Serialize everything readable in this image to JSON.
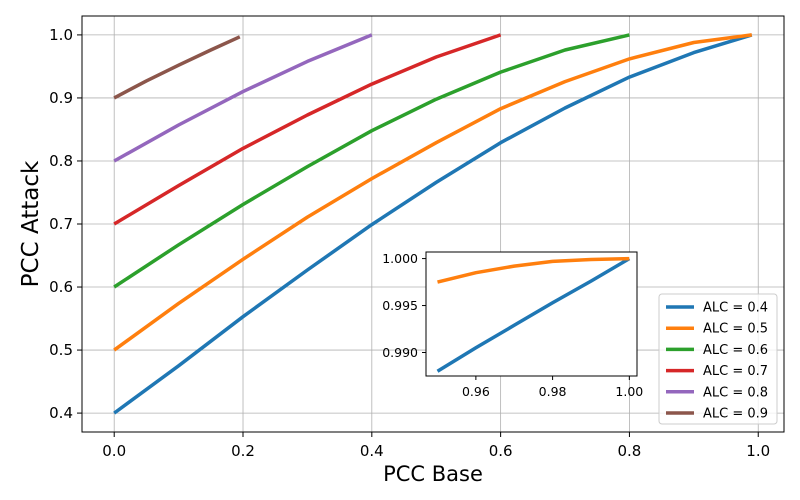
{
  "chart_data": [
    {
      "type": "line",
      "xlabel": "PCC Base",
      "ylabel": "PCC Attack",
      "xlim": [
        -0.05,
        1.04
      ],
      "ylim": [
        0.37,
        1.03
      ],
      "xticks": [
        0.0,
        0.2,
        0.4,
        0.6,
        0.8,
        1.0
      ],
      "xtick_labels": [
        "0.0",
        "0.2",
        "0.4",
        "0.6",
        "0.8",
        "1.0"
      ],
      "yticks": [
        0.4,
        0.5,
        0.6,
        0.7,
        0.8,
        0.9,
        1.0
      ],
      "ytick_labels": [
        "0.4",
        "0.5",
        "0.6",
        "0.7",
        "0.8",
        "0.9",
        "1.0"
      ],
      "grid": true,
      "legend_position": "lower right",
      "series": [
        {
          "name": "ALC = 0.4",
          "color": "#1f77b4",
          "x": [
            0.0,
            0.1,
            0.2,
            0.3,
            0.4,
            0.5,
            0.6,
            0.7,
            0.8,
            0.9,
            0.99
          ],
          "y": [
            0.4,
            0.475,
            0.553,
            0.627,
            0.699,
            0.766,
            0.829,
            0.884,
            0.933,
            0.972,
            1.0
          ]
        },
        {
          "name": "ALC = 0.5",
          "color": "#ff7f0e",
          "x": [
            0.0,
            0.1,
            0.2,
            0.3,
            0.4,
            0.5,
            0.6,
            0.7,
            0.8,
            0.9,
            0.99
          ],
          "y": [
            0.5,
            0.574,
            0.644,
            0.711,
            0.772,
            0.829,
            0.883,
            0.926,
            0.962,
            0.988,
            1.0
          ]
        },
        {
          "name": "ALC = 0.6",
          "color": "#2ca02c",
          "x": [
            0.0,
            0.1,
            0.2,
            0.3,
            0.4,
            0.5,
            0.6,
            0.7,
            0.8
          ],
          "y": [
            0.6,
            0.667,
            0.731,
            0.791,
            0.848,
            0.898,
            0.941,
            0.976,
            1.0
          ]
        },
        {
          "name": "ALC = 0.7",
          "color": "#d62728",
          "x": [
            0.0,
            0.1,
            0.2,
            0.3,
            0.4,
            0.5,
            0.6
          ],
          "y": [
            0.7,
            0.761,
            0.82,
            0.873,
            0.922,
            0.965,
            1.0
          ]
        },
        {
          "name": "ALC = 0.8",
          "color": "#9467bd",
          "x": [
            0.0,
            0.1,
            0.2,
            0.3,
            0.4
          ],
          "y": [
            0.8,
            0.857,
            0.91,
            0.958,
            1.0
          ]
        },
        {
          "name": "ALC = 0.9",
          "color": "#8c564b",
          "x": [
            0.0,
            0.05,
            0.1,
            0.15,
            0.195
          ],
          "y": [
            0.9,
            0.927,
            0.952,
            0.976,
            0.997
          ]
        }
      ]
    },
    {
      "type": "line",
      "xlabel": "",
      "ylabel": "",
      "xlim": [
        0.947,
        1.002
      ],
      "ylim": [
        0.9875,
        1.0007
      ],
      "xticks": [
        0.96,
        0.98,
        1.0
      ],
      "xtick_labels": [
        "0.96",
        "0.98",
        "1.00"
      ],
      "yticks": [
        0.99,
        0.995,
        1.0
      ],
      "ytick_labels": [
        "0.990",
        "0.995",
        "1.000"
      ],
      "grid": false,
      "series": [
        {
          "color": "#1f77b4",
          "x": [
            0.95,
            0.96,
            0.97,
            0.98,
            0.99,
            1.0
          ],
          "y": [
            0.988,
            0.9905,
            0.9929,
            0.9953,
            0.9976,
            1.0
          ]
        },
        {
          "color": "#ff7f0e",
          "x": [
            0.95,
            0.96,
            0.97,
            0.98,
            0.99,
            1.0
          ],
          "y": [
            0.9975,
            0.9985,
            0.9992,
            0.9997,
            0.9999,
            1.0
          ]
        }
      ]
    }
  ]
}
